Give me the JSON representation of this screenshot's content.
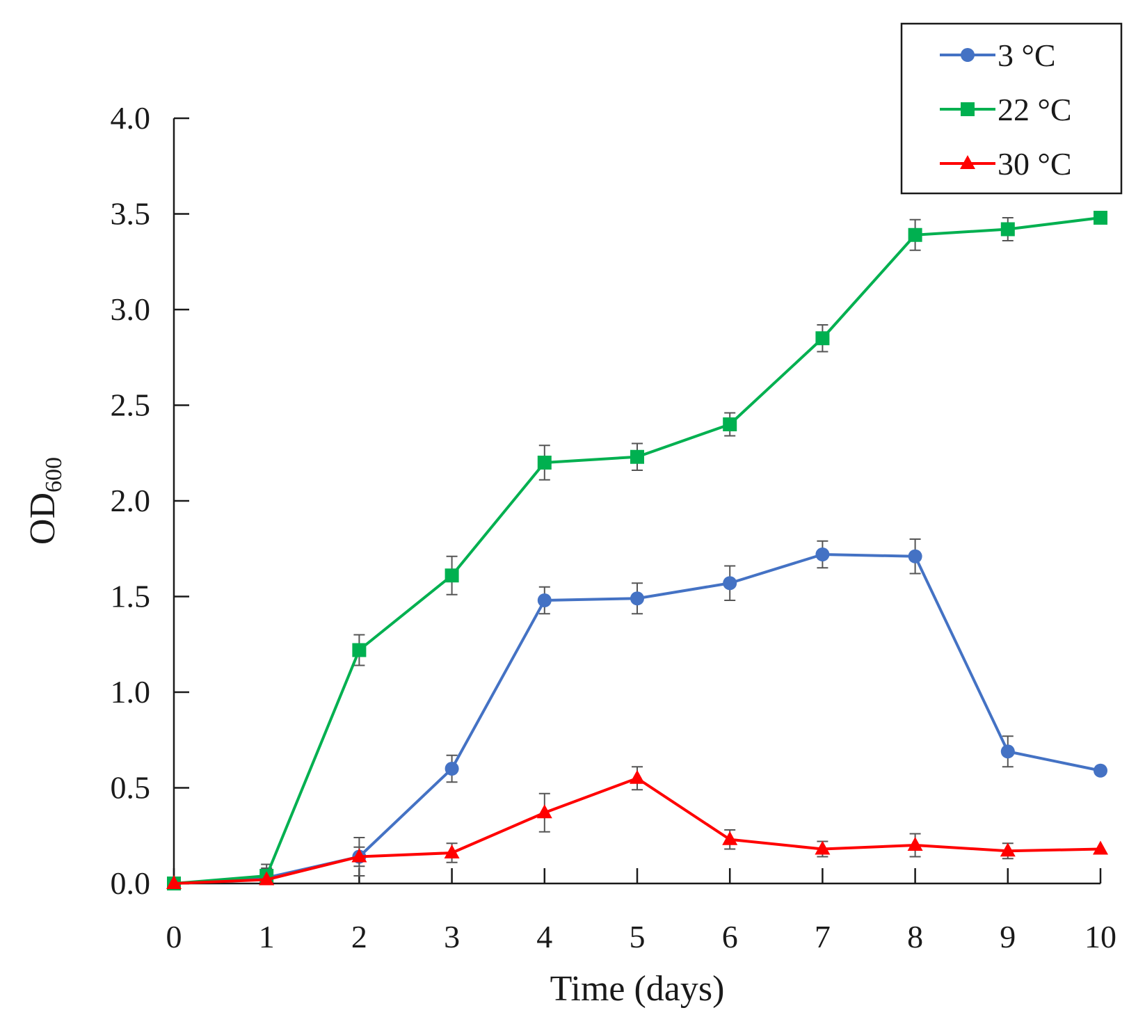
{
  "chart_data": {
    "type": "line",
    "title": "",
    "xlabel": "Time (days)",
    "ylabel": {
      "main": "OD",
      "subscript": "600"
    },
    "x": [
      0,
      1,
      2,
      3,
      4,
      5,
      6,
      7,
      8,
      9,
      10
    ],
    "xlim": [
      0,
      10
    ],
    "ylim": [
      0,
      4.0
    ],
    "xticks": [
      0,
      1,
      2,
      3,
      4,
      5,
      6,
      7,
      8,
      9,
      10
    ],
    "yticks": [
      0.0,
      0.5,
      1.0,
      1.5,
      2.0,
      2.5,
      3.0,
      3.5,
      4.0
    ],
    "ytick_labels": [
      "0.0",
      "0.5",
      "1.0",
      "1.5",
      "2.0",
      "2.5",
      "3.0",
      "3.5",
      "4.0"
    ],
    "grid": false,
    "legend_position": "top-right",
    "series": [
      {
        "name": "3 °C",
        "color": "#4472C4",
        "marker": "circle",
        "values": [
          0.0,
          0.03,
          0.14,
          0.6,
          1.48,
          1.49,
          1.57,
          1.72,
          1.71,
          0.69,
          0.59
        ],
        "errors": [
          0.0,
          0.07,
          0.1,
          0.07,
          0.07,
          0.08,
          0.09,
          0.07,
          0.09,
          0.08,
          0.0
        ]
      },
      {
        "name": "22 °C",
        "color": "#00B050",
        "marker": "square",
        "values": [
          0.0,
          0.04,
          1.22,
          1.61,
          2.2,
          2.23,
          2.4,
          2.85,
          3.39,
          3.42,
          3.48
        ],
        "errors": [
          0.0,
          0.04,
          0.08,
          0.1,
          0.09,
          0.07,
          0.06,
          0.07,
          0.08,
          0.06,
          0.0
        ]
      },
      {
        "name": "30 °C",
        "color": "#FF0000",
        "marker": "triangle",
        "values": [
          0.0,
          0.02,
          0.14,
          0.16,
          0.37,
          0.55,
          0.23,
          0.18,
          0.2,
          0.17,
          0.18
        ],
        "errors": [
          0.0,
          0.0,
          0.05,
          0.05,
          0.1,
          0.06,
          0.05,
          0.04,
          0.06,
          0.04,
          0.0
        ]
      }
    ]
  }
}
